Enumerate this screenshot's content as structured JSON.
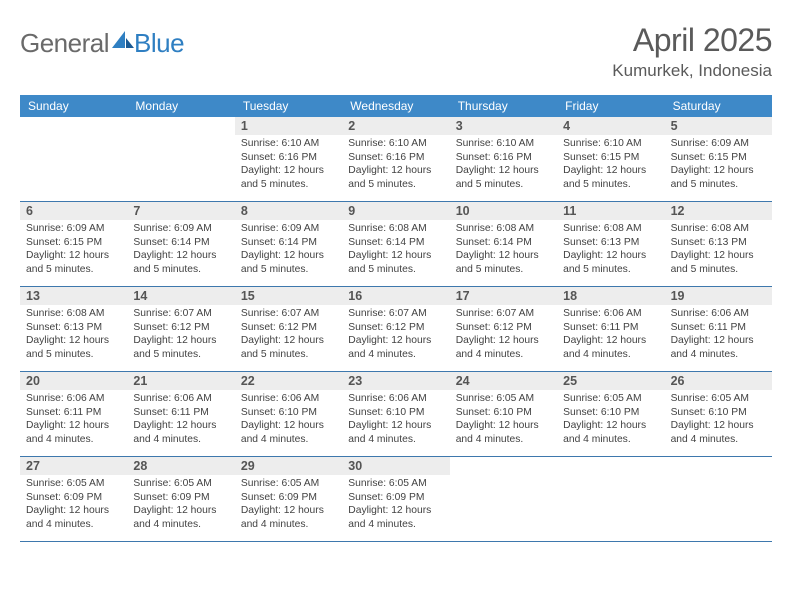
{
  "logo": {
    "text1": "General",
    "text2": "Blue"
  },
  "title": {
    "month": "April 2025",
    "location": "Kumurkek, Indonesia"
  },
  "colors": {
    "header_bg": "#3e89c8",
    "header_text": "#ffffff",
    "daynum_bg": "#ededed",
    "daynum_text": "#555555",
    "border": "#3e78ad",
    "logo_gray": "#6a6a6a",
    "logo_blue": "#2f7fc2",
    "body_text": "#424242"
  },
  "dayHeaders": [
    "Sunday",
    "Monday",
    "Tuesday",
    "Wednesday",
    "Thursday",
    "Friday",
    "Saturday"
  ],
  "weeks": [
    [
      {
        "empty": true
      },
      {
        "empty": true
      },
      {
        "num": "1",
        "sunrise": "Sunrise: 6:10 AM",
        "sunset": "Sunset: 6:16 PM",
        "daylight": "Daylight: 12 hours and 5 minutes."
      },
      {
        "num": "2",
        "sunrise": "Sunrise: 6:10 AM",
        "sunset": "Sunset: 6:16 PM",
        "daylight": "Daylight: 12 hours and 5 minutes."
      },
      {
        "num": "3",
        "sunrise": "Sunrise: 6:10 AM",
        "sunset": "Sunset: 6:16 PM",
        "daylight": "Daylight: 12 hours and 5 minutes."
      },
      {
        "num": "4",
        "sunrise": "Sunrise: 6:10 AM",
        "sunset": "Sunset: 6:15 PM",
        "daylight": "Daylight: 12 hours and 5 minutes."
      },
      {
        "num": "5",
        "sunrise": "Sunrise: 6:09 AM",
        "sunset": "Sunset: 6:15 PM",
        "daylight": "Daylight: 12 hours and 5 minutes."
      }
    ],
    [
      {
        "num": "6",
        "sunrise": "Sunrise: 6:09 AM",
        "sunset": "Sunset: 6:15 PM",
        "daylight": "Daylight: 12 hours and 5 minutes."
      },
      {
        "num": "7",
        "sunrise": "Sunrise: 6:09 AM",
        "sunset": "Sunset: 6:14 PM",
        "daylight": "Daylight: 12 hours and 5 minutes."
      },
      {
        "num": "8",
        "sunrise": "Sunrise: 6:09 AM",
        "sunset": "Sunset: 6:14 PM",
        "daylight": "Daylight: 12 hours and 5 minutes."
      },
      {
        "num": "9",
        "sunrise": "Sunrise: 6:08 AM",
        "sunset": "Sunset: 6:14 PM",
        "daylight": "Daylight: 12 hours and 5 minutes."
      },
      {
        "num": "10",
        "sunrise": "Sunrise: 6:08 AM",
        "sunset": "Sunset: 6:14 PM",
        "daylight": "Daylight: 12 hours and 5 minutes."
      },
      {
        "num": "11",
        "sunrise": "Sunrise: 6:08 AM",
        "sunset": "Sunset: 6:13 PM",
        "daylight": "Daylight: 12 hours and 5 minutes."
      },
      {
        "num": "12",
        "sunrise": "Sunrise: 6:08 AM",
        "sunset": "Sunset: 6:13 PM",
        "daylight": "Daylight: 12 hours and 5 minutes."
      }
    ],
    [
      {
        "num": "13",
        "sunrise": "Sunrise: 6:08 AM",
        "sunset": "Sunset: 6:13 PM",
        "daylight": "Daylight: 12 hours and 5 minutes."
      },
      {
        "num": "14",
        "sunrise": "Sunrise: 6:07 AM",
        "sunset": "Sunset: 6:12 PM",
        "daylight": "Daylight: 12 hours and 5 minutes."
      },
      {
        "num": "15",
        "sunrise": "Sunrise: 6:07 AM",
        "sunset": "Sunset: 6:12 PM",
        "daylight": "Daylight: 12 hours and 5 minutes."
      },
      {
        "num": "16",
        "sunrise": "Sunrise: 6:07 AM",
        "sunset": "Sunset: 6:12 PM",
        "daylight": "Daylight: 12 hours and 4 minutes."
      },
      {
        "num": "17",
        "sunrise": "Sunrise: 6:07 AM",
        "sunset": "Sunset: 6:12 PM",
        "daylight": "Daylight: 12 hours and 4 minutes."
      },
      {
        "num": "18",
        "sunrise": "Sunrise: 6:06 AM",
        "sunset": "Sunset: 6:11 PM",
        "daylight": "Daylight: 12 hours and 4 minutes."
      },
      {
        "num": "19",
        "sunrise": "Sunrise: 6:06 AM",
        "sunset": "Sunset: 6:11 PM",
        "daylight": "Daylight: 12 hours and 4 minutes."
      }
    ],
    [
      {
        "num": "20",
        "sunrise": "Sunrise: 6:06 AM",
        "sunset": "Sunset: 6:11 PM",
        "daylight": "Daylight: 12 hours and 4 minutes."
      },
      {
        "num": "21",
        "sunrise": "Sunrise: 6:06 AM",
        "sunset": "Sunset: 6:11 PM",
        "daylight": "Daylight: 12 hours and 4 minutes."
      },
      {
        "num": "22",
        "sunrise": "Sunrise: 6:06 AM",
        "sunset": "Sunset: 6:10 PM",
        "daylight": "Daylight: 12 hours and 4 minutes."
      },
      {
        "num": "23",
        "sunrise": "Sunrise: 6:06 AM",
        "sunset": "Sunset: 6:10 PM",
        "daylight": "Daylight: 12 hours and 4 minutes."
      },
      {
        "num": "24",
        "sunrise": "Sunrise: 6:05 AM",
        "sunset": "Sunset: 6:10 PM",
        "daylight": "Daylight: 12 hours and 4 minutes."
      },
      {
        "num": "25",
        "sunrise": "Sunrise: 6:05 AM",
        "sunset": "Sunset: 6:10 PM",
        "daylight": "Daylight: 12 hours and 4 minutes."
      },
      {
        "num": "26",
        "sunrise": "Sunrise: 6:05 AM",
        "sunset": "Sunset: 6:10 PM",
        "daylight": "Daylight: 12 hours and 4 minutes."
      }
    ],
    [
      {
        "num": "27",
        "sunrise": "Sunrise: 6:05 AM",
        "sunset": "Sunset: 6:09 PM",
        "daylight": "Daylight: 12 hours and 4 minutes."
      },
      {
        "num": "28",
        "sunrise": "Sunrise: 6:05 AM",
        "sunset": "Sunset: 6:09 PM",
        "daylight": "Daylight: 12 hours and 4 minutes."
      },
      {
        "num": "29",
        "sunrise": "Sunrise: 6:05 AM",
        "sunset": "Sunset: 6:09 PM",
        "daylight": "Daylight: 12 hours and 4 minutes."
      },
      {
        "num": "30",
        "sunrise": "Sunrise: 6:05 AM",
        "sunset": "Sunset: 6:09 PM",
        "daylight": "Daylight: 12 hours and 4 minutes."
      },
      {
        "empty": true
      },
      {
        "empty": true
      },
      {
        "empty": true
      }
    ]
  ]
}
